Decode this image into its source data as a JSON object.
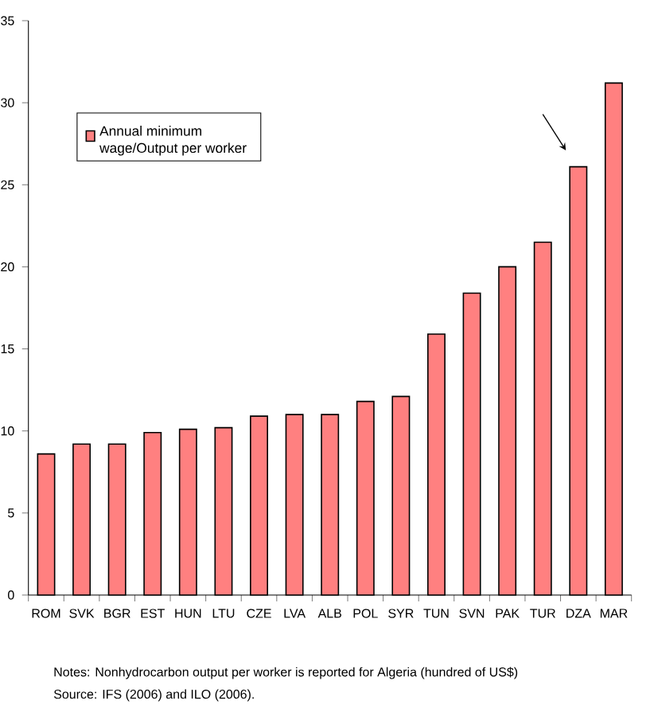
{
  "chart_data": {
    "type": "bar",
    "categories": [
      "ROM",
      "SVK",
      "BGR",
      "EST",
      "HUN",
      "LTU",
      "CZE",
      "LVA",
      "ALB",
      "POL",
      "SYR",
      "TUN",
      "SVN",
      "PAK",
      "TUR",
      "DZA",
      "MAR"
    ],
    "series": [
      {
        "name": "Annual minimum wage/Output per worker",
        "color": "#ff8080",
        "values": [
          8.6,
          9.2,
          9.2,
          9.9,
          10.1,
          10.2,
          10.9,
          11.0,
          11.0,
          11.8,
          12.1,
          15.9,
          18.4,
          20.0,
          21.5,
          26.1,
          31.2
        ]
      }
    ],
    "ylim": [
      0,
      35
    ],
    "yticks": [
      0,
      5,
      10,
      15,
      20,
      25,
      30,
      35
    ],
    "grid": false,
    "legend": "top left",
    "annotations": [
      "Notes: Nonhydrocarbon output per worker is reported for Algeria (hundred of US$)",
      "Source: IFS (2006) and ILO (2006)."
    ]
  }
}
